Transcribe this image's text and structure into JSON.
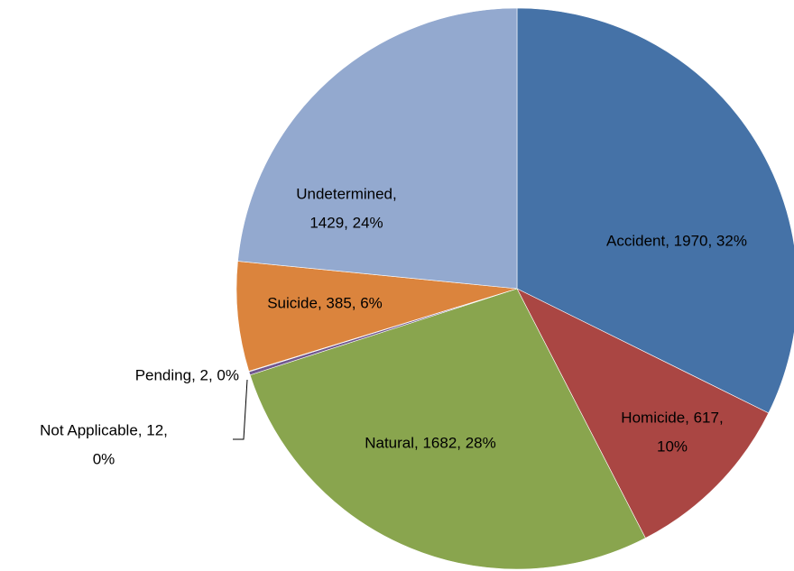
{
  "chart_data": {
    "type": "pie",
    "categories": [
      "Accident",
      "Homicide",
      "Natural",
      "Not Applicable",
      "Pending",
      "Suicide",
      "Undetermined"
    ],
    "values": [
      1970,
      617,
      1682,
      12,
      2,
      385,
      1429
    ],
    "value_labels": [
      [
        "Accident, 1970, 32%"
      ],
      [
        "Homicide, 617,",
        "10%"
      ],
      [
        "Natural, 1682, 28%"
      ],
      [
        "Not Applicable, 12,",
        "0%"
      ],
      [
        "Pending, 2, 0%"
      ],
      [
        "Suicide, 385, 6%"
      ],
      [
        "Undetermined,",
        "1429, 24%"
      ]
    ],
    "colors": [
      "#4572a7",
      "#aa4643",
      "#89a54e",
      "#71588f",
      "#4198af",
      "#db843d",
      "#93a9cf"
    ]
  }
}
